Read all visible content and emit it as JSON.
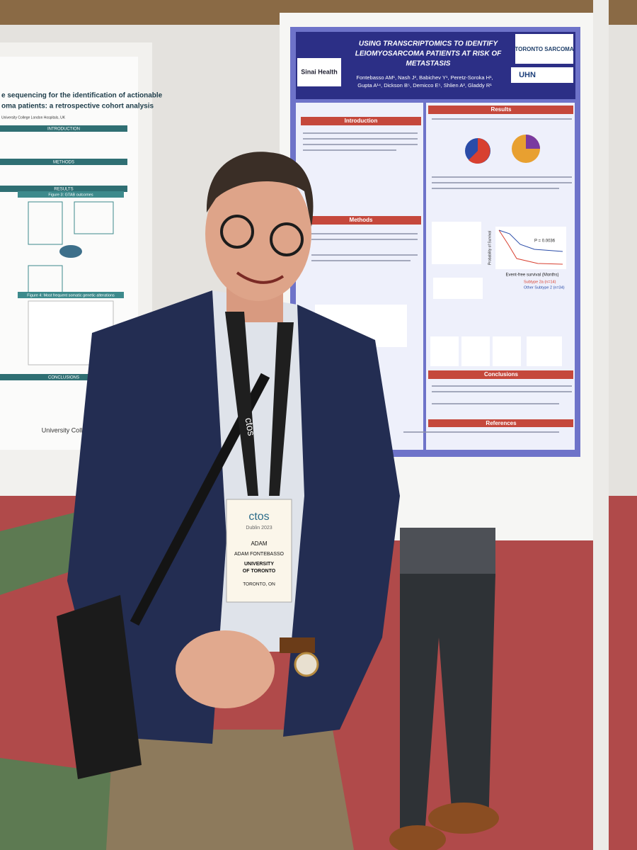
{
  "left_poster": {
    "title_lines": [
      "e sequencing for the identification of actionable",
      "oma patients: a retrospective cohort analysis"
    ],
    "affiliation": "University College London Hospitals, UK",
    "sections": [
      "INTRODUCTION",
      "METHODS",
      "RESULTS",
      "CONCLUSIONS"
    ],
    "figure_3": "Figure 3: GTAB outcomes",
    "figure_4": "Figure 4: Most frequent somatic genetic alterations",
    "footer": "University College"
  },
  "right_poster": {
    "title_lines": [
      "USING TRANSCRIPTOMICS TO IDENTIFY",
      "LEIOMYOSARCOMA PATIENTS AT RISK OF",
      "METASTASIS"
    ],
    "logos": [
      "Sinai Health",
      "TORONTO SARCOMA",
      "UHN"
    ],
    "authors": [
      "Fontebasso AM¹, Nash J², Babichev Y¹, Peretz-Soroka H¹,",
      "Gupta A¹⁴, Dickson B⁵, Demicco E⁵, Shlien A², Gladdy R¹"
    ],
    "sections": {
      "introduction": "Introduction",
      "methods": "Methods",
      "results": "Results",
      "conclusions": "Conclusions",
      "references": "References"
    },
    "km_axis": "Event-free survival (Months)",
    "km_y_axis": "Probability of Survival",
    "p_value": "P = 0.0036",
    "legend": [
      "Subtype 2a (n=14)",
      "Other Subtype 2 (n=34)"
    ]
  },
  "badge": {
    "logo": "ctos",
    "event": "Dublin 2023",
    "first_name": "ADAM",
    "full_name": "ADAM FONTEBASSO",
    "institution_lines": [
      "UNIVERSITY",
      "OF TORONTO"
    ],
    "city": "TORONTO, ON"
  },
  "lanyard": "ctos"
}
